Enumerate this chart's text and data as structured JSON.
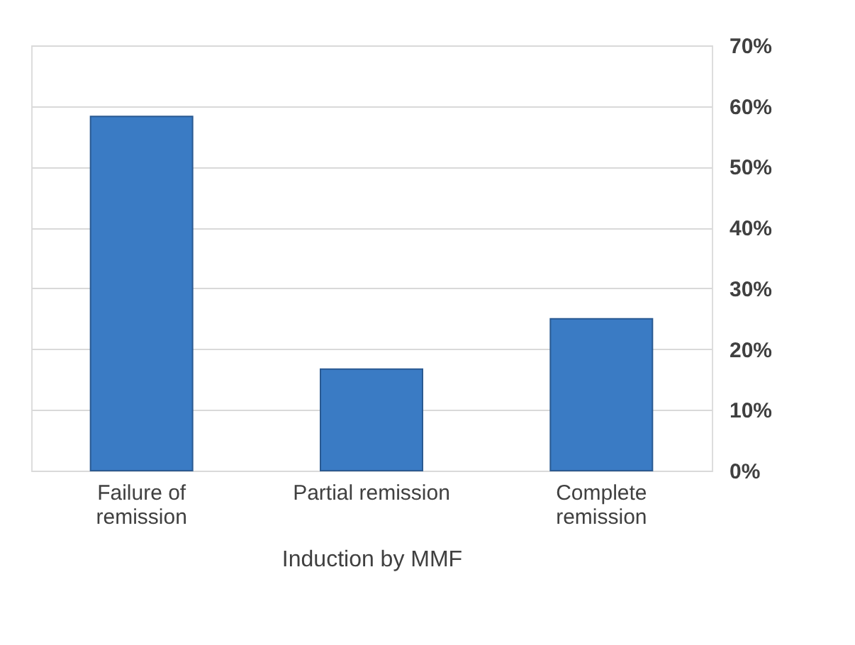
{
  "chart_data": {
    "type": "bar",
    "xlabel": "Induction by MMF",
    "categories": [
      "Failure of\nremission",
      "Partial remission",
      "Complete\nremission"
    ],
    "values": [
      58.3,
      16.7,
      25
    ],
    "color": "#3a7bc4",
    "ylim": [
      0,
      70
    ],
    "yticks": [
      {
        "value": 0,
        "label": "0%"
      },
      {
        "value": 10,
        "label": "10%"
      },
      {
        "value": 20,
        "label": "20%"
      },
      {
        "value": 30,
        "label": "30%"
      },
      {
        "value": 40,
        "label": "40%"
      },
      {
        "value": 50,
        "label": "50%"
      },
      {
        "value": 60,
        "label": "60%"
      },
      {
        "value": 70,
        "label": "70%"
      }
    ],
    "grid": "y"
  }
}
